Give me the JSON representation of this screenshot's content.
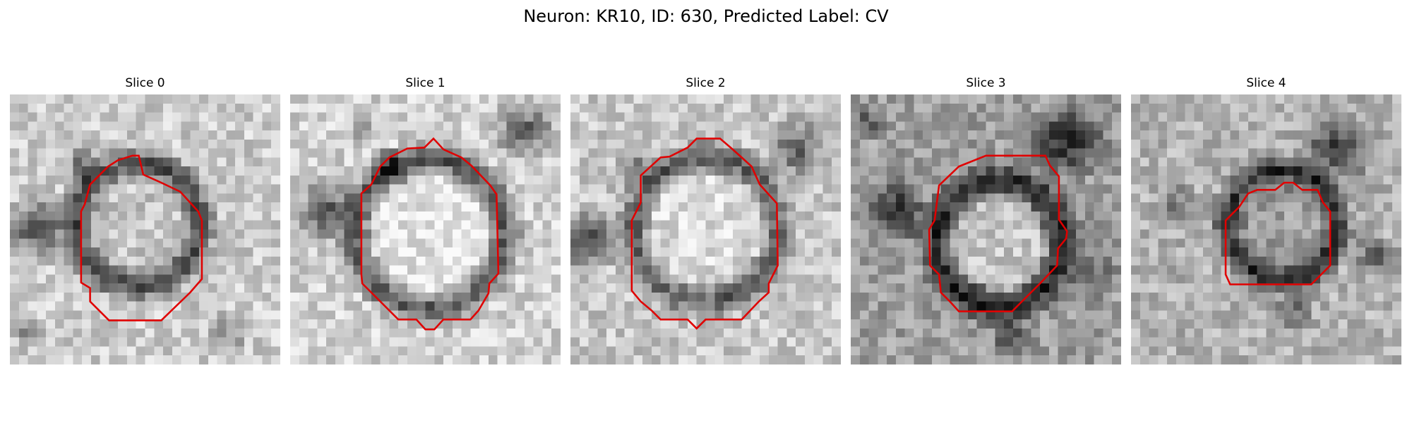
{
  "figure": {
    "title": "Neuron: KR10, ID: 630, Predicted Label: CV",
    "contour_color": "#e00000"
  },
  "panels": [
    {
      "title": "Slice 0"
    },
    {
      "title": "Slice 1"
    },
    {
      "title": "Slice 2"
    },
    {
      "title": "Slice 3"
    },
    {
      "title": "Slice 4"
    }
  ]
}
